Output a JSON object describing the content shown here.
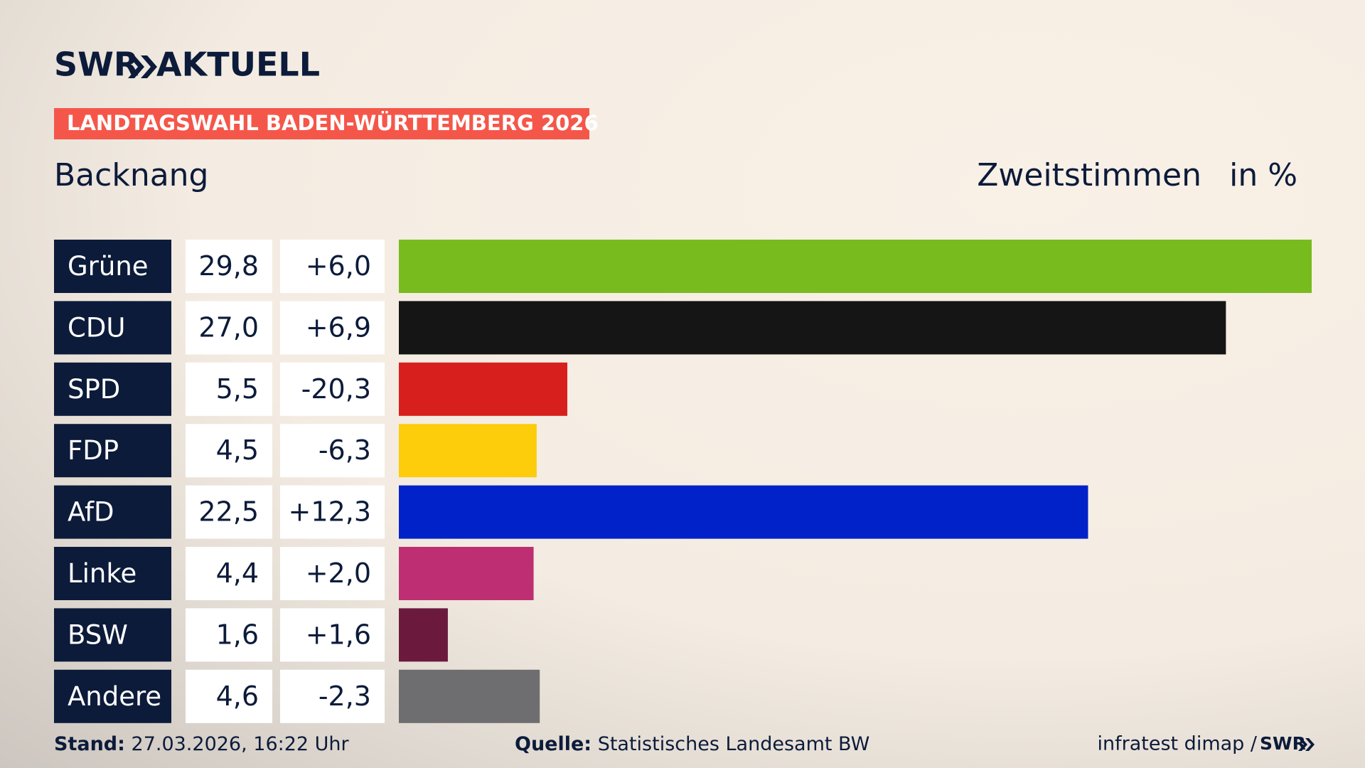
{
  "logo": "SWR",
  "brand": "AKTUELL",
  "banner": "LANDTAGSWAHL BADEN-WÜRTTEMBERG 2026",
  "chart_data": {
    "type": "bar",
    "title": "Backnang",
    "subtitle": "Zweitstimmen",
    "unit": "in %",
    "categories": [
      "Grüne",
      "CDU",
      "SPD",
      "FDP",
      "AfD",
      "Linke",
      "BSW",
      "Andere"
    ],
    "values": [
      29.8,
      27.0,
      5.5,
      4.5,
      22.5,
      4.4,
      1.6,
      4.6
    ],
    "value_labels": [
      "29,8",
      "27,0",
      "5,5",
      "4,5",
      "22,5",
      "4,4",
      "1,6",
      "4,6"
    ],
    "change_labels": [
      "+6,0",
      "+6,9",
      "-20,3",
      "-6,3",
      "+12,3",
      "+2,0",
      "+1,6",
      "-2,3"
    ],
    "colors": [
      "#78bb1e",
      "#151515",
      "#d71f1d",
      "#fdcc0a",
      "#0022c8",
      "#bd2f72",
      "#6b1a3e",
      "#6e6e70"
    ]
  },
  "footer": {
    "stand_label": "Stand:",
    "stand": "27.03.2026, 16:22 Uhr",
    "source_label": "Quelle:",
    "source": "Statistisches Landesamt BW",
    "credit": "infratest dimap /",
    "credit_logo": "SWR"
  }
}
